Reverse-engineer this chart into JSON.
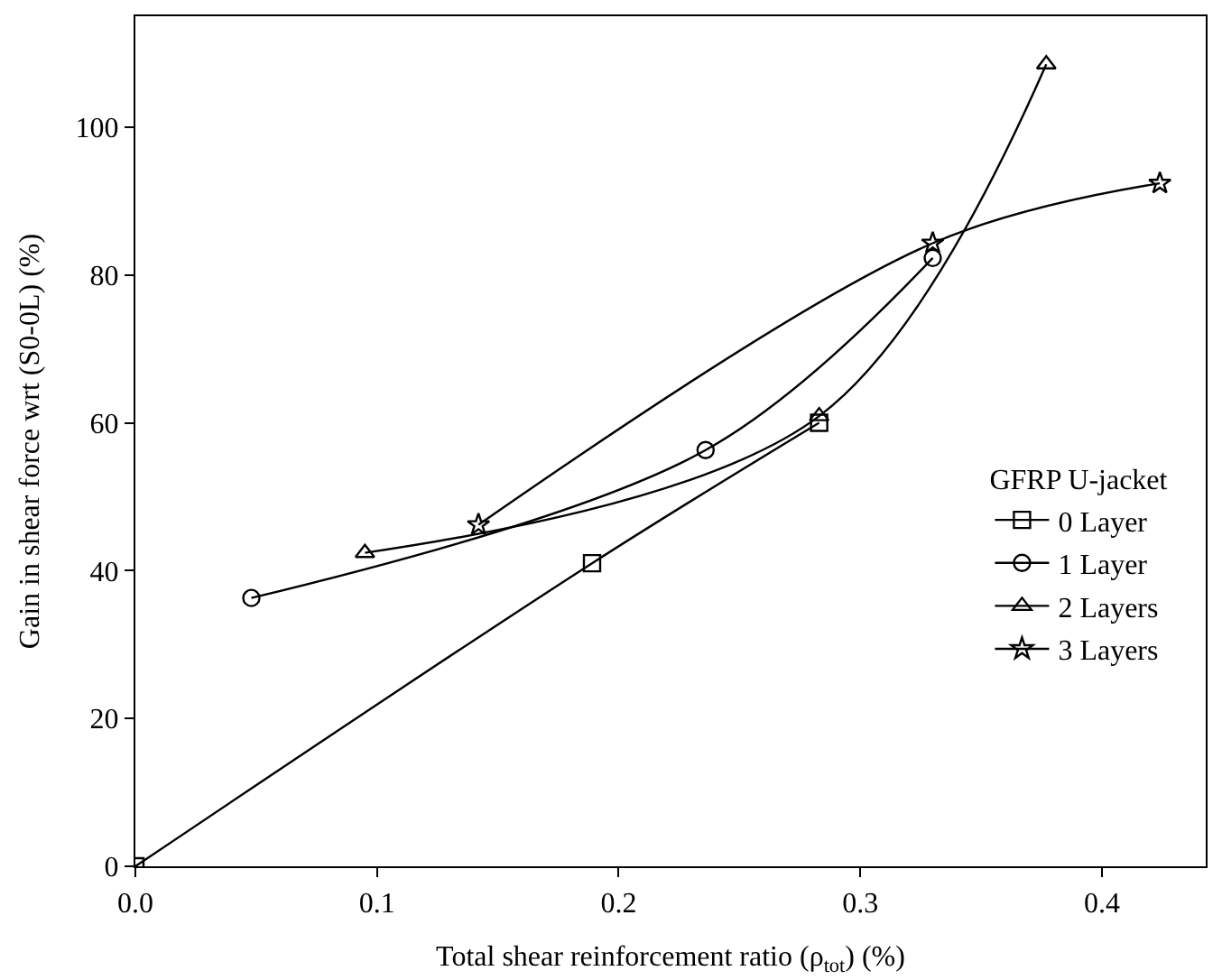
{
  "chart_data": {
    "type": "line",
    "xlabel": "Total shear reinforcement ratio (ρ$_{tot}$) (%)",
    "ylabel": "Gain in shear force wrt (S0-0L) (%)",
    "legend_title": "GFRP U-jacket",
    "legend": "right",
    "xlim": [
      0,
      0.443
    ],
    "xticks": [
      {
        "value": 0,
        "label": "0.0"
      },
      0.1,
      0.2,
      0.3,
      0.4
    ],
    "ylim": [
      0,
      115
    ],
    "yticks": [
      0,
      20,
      40,
      60,
      80,
      100
    ],
    "series": [
      {
        "name": "0 Layer",
        "color": "#000000",
        "marker": "square",
        "x": [
          0,
          0.189,
          0.283
        ],
        "values": [
          0,
          41,
          60
        ]
      },
      {
        "name": "1 Layer",
        "color": "#000000",
        "marker": "circle",
        "x": [
          0.048,
          0.236,
          0.33
        ],
        "values": [
          36.3,
          56.3,
          82.3
        ]
      },
      {
        "name": "2 Layers",
        "color": "#000000",
        "marker": "triangle",
        "x": [
          0.095,
          0.283,
          0.377
        ],
        "values": [
          42.4,
          60.9,
          108.5
        ]
      },
      {
        "name": "3 Layers",
        "color": "#000000",
        "marker": "star",
        "x": [
          0.142,
          0.33,
          0.424
        ],
        "values": [
          46.2,
          84.3,
          92.4
        ]
      }
    ]
  }
}
